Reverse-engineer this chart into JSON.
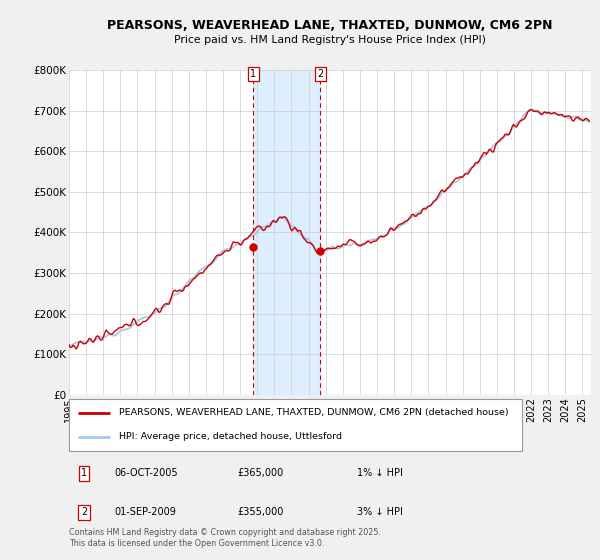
{
  "title": "PEARSONS, WEAVERHEAD LANE, THAXTED, DUNMOW, CM6 2PN",
  "subtitle": "Price paid vs. HM Land Registry's House Price Index (HPI)",
  "ylabel_ticks": [
    "£0",
    "£100K",
    "£200K",
    "£300K",
    "£400K",
    "£500K",
    "£600K",
    "£700K",
    "£800K"
  ],
  "ylim": [
    0,
    800000
  ],
  "xlim_start": 1995.0,
  "xlim_end": 2025.5,
  "sale1_date": 2005.76,
  "sale1_label": "1",
  "sale1_price": 365000,
  "sale2_date": 2009.67,
  "sale2_label": "2",
  "sale2_price": 355000,
  "hpi_color": "#a8c8e8",
  "price_color": "#cc0000",
  "sale_marker_color": "#cc0000",
  "shade_color": "#ddeeff",
  "legend_line1": "PEARSONS, WEAVERHEAD LANE, THAXTED, DUNMOW, CM6 2PN (detached house)",
  "legend_line2": "HPI: Average price, detached house, Uttlesford",
  "table_row1": [
    "1",
    "06-OCT-2005",
    "£365,000",
    "1% ↓ HPI"
  ],
  "table_row2": [
    "2",
    "01-SEP-2009",
    "£355,000",
    "3% ↓ HPI"
  ],
  "footer": "Contains HM Land Registry data © Crown copyright and database right 2025.\nThis data is licensed under the Open Government Licence v3.0.",
  "bg_color": "#f0f0f0",
  "plot_bg_color": "#ffffff",
  "grid_color": "#cccccc"
}
